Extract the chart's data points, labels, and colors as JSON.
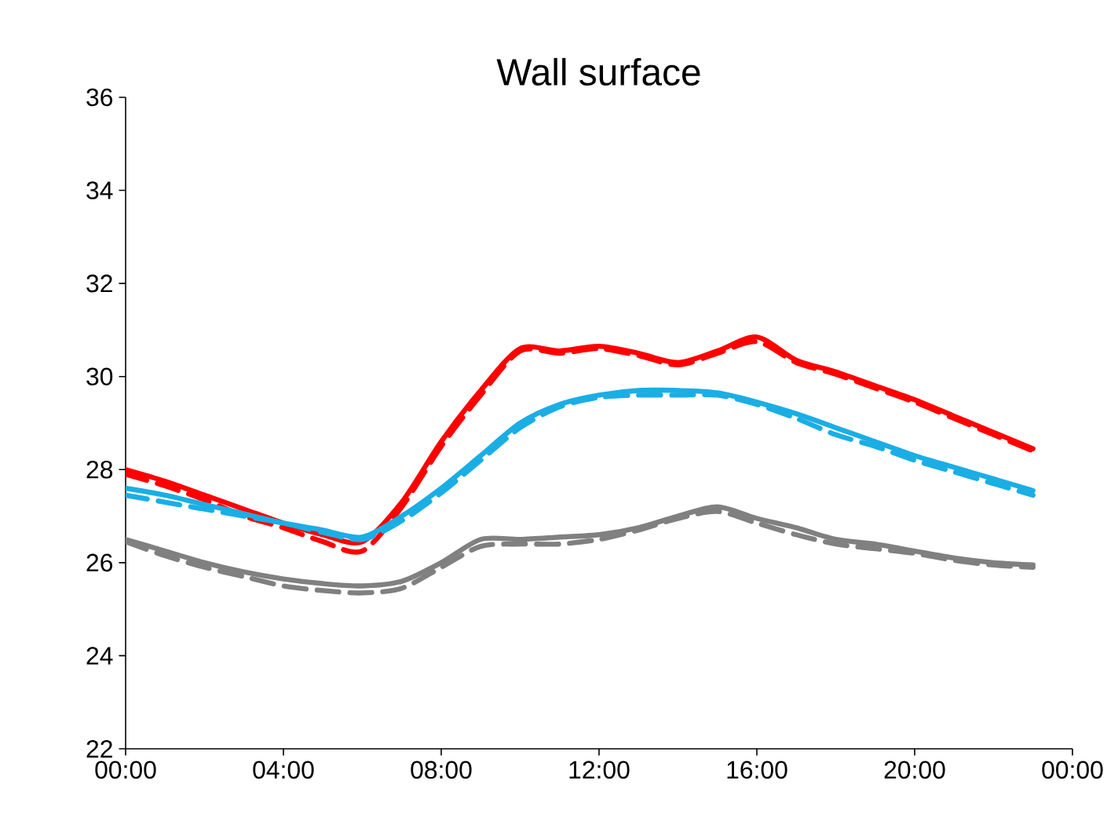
{
  "chart_data": {
    "type": "line",
    "title": "Wall surface",
    "x": [
      0,
      1,
      2,
      3,
      4,
      5,
      6,
      7,
      8,
      9,
      10,
      11,
      12,
      13,
      14,
      15,
      16,
      17,
      18,
      19,
      20,
      21,
      22,
      23
    ],
    "xlim": [
      0,
      24
    ],
    "xticks": [
      {
        "value": 0,
        "label": "00:00"
      },
      {
        "value": 4,
        "label": "04:00"
      },
      {
        "value": 8,
        "label": "08:00"
      },
      {
        "value": 12,
        "label": "12:00"
      },
      {
        "value": 16,
        "label": "16:00"
      },
      {
        "value": 20,
        "label": "20:00"
      },
      {
        "value": 24,
        "label": "00:00"
      }
    ],
    "ylim": [
      22,
      36
    ],
    "yticks": [
      22,
      24,
      26,
      28,
      30,
      32,
      34,
      36
    ],
    "grid": false,
    "marker": "none",
    "series": [
      {
        "color": "#ff0000",
        "line_style": "solid",
        "values": [
          28.0,
          27.75,
          27.45,
          27.15,
          26.85,
          26.6,
          26.45,
          27.3,
          28.6,
          29.7,
          30.6,
          30.55,
          30.65,
          30.5,
          30.3,
          30.55,
          30.85,
          30.35,
          30.1,
          29.8,
          29.5,
          29.15,
          28.8,
          28.45
        ]
      },
      {
        "color": "#ff0000",
        "line_style": "dashed",
        "values": [
          27.9,
          27.65,
          27.35,
          27.0,
          26.75,
          26.45,
          26.25,
          27.2,
          28.5,
          29.6,
          30.55,
          30.5,
          30.6,
          30.45,
          30.25,
          30.5,
          30.75,
          30.3,
          30.05,
          29.75,
          29.45,
          29.1,
          28.75,
          28.4
        ]
      },
      {
        "color": "#1aaee5",
        "line_style": "solid",
        "values": [
          27.6,
          27.45,
          27.25,
          27.05,
          26.85,
          26.7,
          26.55,
          27.0,
          27.6,
          28.3,
          29.0,
          29.4,
          29.6,
          29.7,
          29.7,
          29.65,
          29.45,
          29.2,
          28.9,
          28.6,
          28.3,
          28.05,
          27.8,
          27.55
        ]
      },
      {
        "color": "#1aaee5",
        "line_style": "dashed",
        "values": [
          27.45,
          27.3,
          27.15,
          27.0,
          26.85,
          26.65,
          26.5,
          26.9,
          27.5,
          28.2,
          28.9,
          29.35,
          29.55,
          29.6,
          29.6,
          29.6,
          29.4,
          29.1,
          28.75,
          28.5,
          28.2,
          27.95,
          27.7,
          27.45
        ]
      },
      {
        "color": "#808080",
        "line_style": "solid",
        "values": [
          26.5,
          26.25,
          26.0,
          25.8,
          25.65,
          25.55,
          25.5,
          25.6,
          26.0,
          26.5,
          26.5,
          26.55,
          26.6,
          26.75,
          27.0,
          27.2,
          26.95,
          26.75,
          26.5,
          26.4,
          26.25,
          26.1,
          26.0,
          25.95
        ]
      },
      {
        "color": "#808080",
        "line_style": "dashed",
        "values": [
          26.45,
          26.15,
          25.9,
          25.7,
          25.5,
          25.4,
          25.35,
          25.45,
          25.9,
          26.35,
          26.4,
          26.4,
          26.5,
          26.7,
          26.95,
          27.1,
          26.85,
          26.6,
          26.4,
          26.3,
          26.2,
          26.05,
          25.95,
          25.9
        ]
      }
    ]
  }
}
